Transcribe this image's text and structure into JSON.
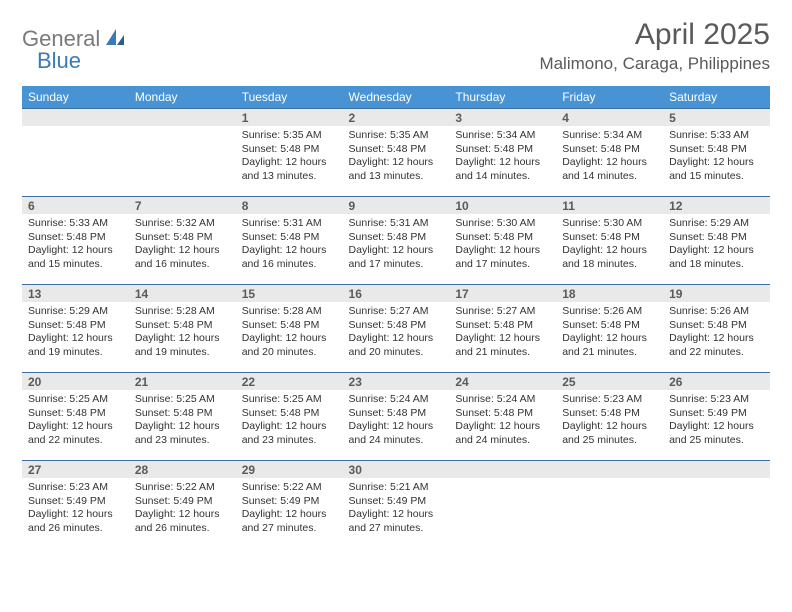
{
  "brand": {
    "name1": "General",
    "name2": "Blue"
  },
  "title": "April 2025",
  "location": "Malimono, Caraga, Philippines",
  "colors": {
    "header_bg": "#4893d4",
    "header_text": "#ffffff",
    "border": "#3f6f9c",
    "daynum_bg": "#e9e9e9",
    "text": "#333333",
    "title_text": "#5a5a5a",
    "logo_gray": "#7a7a7a",
    "logo_blue": "#3a7ab8"
  },
  "weekdays": [
    "Sunday",
    "Monday",
    "Tuesday",
    "Wednesday",
    "Thursday",
    "Friday",
    "Saturday"
  ],
  "weeks": [
    [
      null,
      null,
      {
        "n": "1",
        "sr": "5:35 AM",
        "ss": "5:48 PM",
        "dl": "12 hours and 13 minutes."
      },
      {
        "n": "2",
        "sr": "5:35 AM",
        "ss": "5:48 PM",
        "dl": "12 hours and 13 minutes."
      },
      {
        "n": "3",
        "sr": "5:34 AM",
        "ss": "5:48 PM",
        "dl": "12 hours and 14 minutes."
      },
      {
        "n": "4",
        "sr": "5:34 AM",
        "ss": "5:48 PM",
        "dl": "12 hours and 14 minutes."
      },
      {
        "n": "5",
        "sr": "5:33 AM",
        "ss": "5:48 PM",
        "dl": "12 hours and 15 minutes."
      }
    ],
    [
      {
        "n": "6",
        "sr": "5:33 AM",
        "ss": "5:48 PM",
        "dl": "12 hours and 15 minutes."
      },
      {
        "n": "7",
        "sr": "5:32 AM",
        "ss": "5:48 PM",
        "dl": "12 hours and 16 minutes."
      },
      {
        "n": "8",
        "sr": "5:31 AM",
        "ss": "5:48 PM",
        "dl": "12 hours and 16 minutes."
      },
      {
        "n": "9",
        "sr": "5:31 AM",
        "ss": "5:48 PM",
        "dl": "12 hours and 17 minutes."
      },
      {
        "n": "10",
        "sr": "5:30 AM",
        "ss": "5:48 PM",
        "dl": "12 hours and 17 minutes."
      },
      {
        "n": "11",
        "sr": "5:30 AM",
        "ss": "5:48 PM",
        "dl": "12 hours and 18 minutes."
      },
      {
        "n": "12",
        "sr": "5:29 AM",
        "ss": "5:48 PM",
        "dl": "12 hours and 18 minutes."
      }
    ],
    [
      {
        "n": "13",
        "sr": "5:29 AM",
        "ss": "5:48 PM",
        "dl": "12 hours and 19 minutes."
      },
      {
        "n": "14",
        "sr": "5:28 AM",
        "ss": "5:48 PM",
        "dl": "12 hours and 19 minutes."
      },
      {
        "n": "15",
        "sr": "5:28 AM",
        "ss": "5:48 PM",
        "dl": "12 hours and 20 minutes."
      },
      {
        "n": "16",
        "sr": "5:27 AM",
        "ss": "5:48 PM",
        "dl": "12 hours and 20 minutes."
      },
      {
        "n": "17",
        "sr": "5:27 AM",
        "ss": "5:48 PM",
        "dl": "12 hours and 21 minutes."
      },
      {
        "n": "18",
        "sr": "5:26 AM",
        "ss": "5:48 PM",
        "dl": "12 hours and 21 minutes."
      },
      {
        "n": "19",
        "sr": "5:26 AM",
        "ss": "5:48 PM",
        "dl": "12 hours and 22 minutes."
      }
    ],
    [
      {
        "n": "20",
        "sr": "5:25 AM",
        "ss": "5:48 PM",
        "dl": "12 hours and 22 minutes."
      },
      {
        "n": "21",
        "sr": "5:25 AM",
        "ss": "5:48 PM",
        "dl": "12 hours and 23 minutes."
      },
      {
        "n": "22",
        "sr": "5:25 AM",
        "ss": "5:48 PM",
        "dl": "12 hours and 23 minutes."
      },
      {
        "n": "23",
        "sr": "5:24 AM",
        "ss": "5:48 PM",
        "dl": "12 hours and 24 minutes."
      },
      {
        "n": "24",
        "sr": "5:24 AM",
        "ss": "5:48 PM",
        "dl": "12 hours and 24 minutes."
      },
      {
        "n": "25",
        "sr": "5:23 AM",
        "ss": "5:48 PM",
        "dl": "12 hours and 25 minutes."
      },
      {
        "n": "26",
        "sr": "5:23 AM",
        "ss": "5:49 PM",
        "dl": "12 hours and 25 minutes."
      }
    ],
    [
      {
        "n": "27",
        "sr": "5:23 AM",
        "ss": "5:49 PM",
        "dl": "12 hours and 26 minutes."
      },
      {
        "n": "28",
        "sr": "5:22 AM",
        "ss": "5:49 PM",
        "dl": "12 hours and 26 minutes."
      },
      {
        "n": "29",
        "sr": "5:22 AM",
        "ss": "5:49 PM",
        "dl": "12 hours and 27 minutes."
      },
      {
        "n": "30",
        "sr": "5:21 AM",
        "ss": "5:49 PM",
        "dl": "12 hours and 27 minutes."
      },
      null,
      null,
      null
    ]
  ],
  "labels": {
    "sunrise": "Sunrise: ",
    "sunset": "Sunset: ",
    "daylight": "Daylight: "
  }
}
